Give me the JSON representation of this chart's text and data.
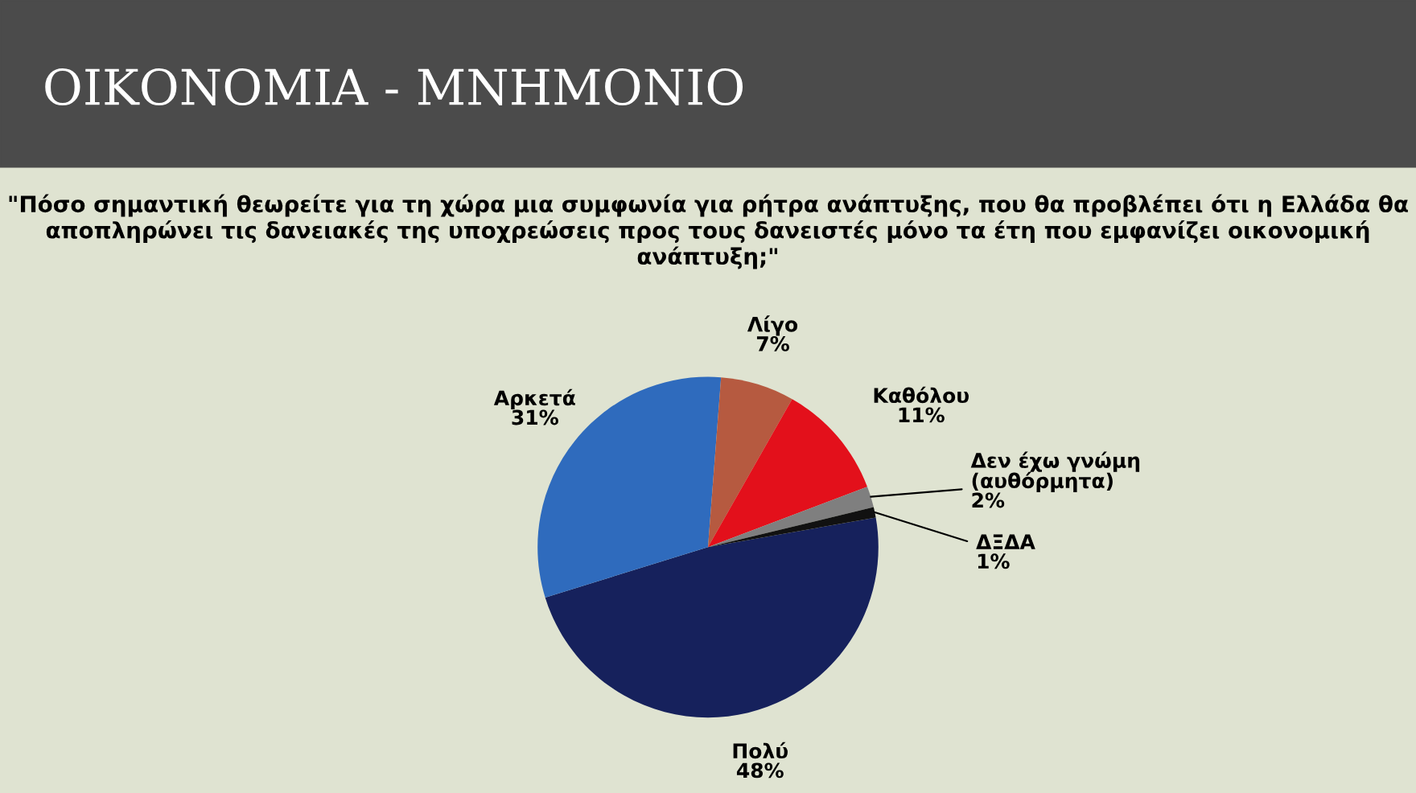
{
  "chart_data": {
    "type": "pie",
    "title": "ΟΙΚΟΝΟΜΙΑ - ΜΝΗΜΟΝΙΟ",
    "subtitle": "\"Πόσο σημαντική θεωρείτε για τη χώρα μια συμφωνία για ρήτρα ανάπτυξης, που θα προβλέπει ότι η Ελλάδα θα αποπληρώνει τις δανειακές της υποχρεώσεις προς τους δανειστές μόνο τα έτη που εμφανίζει οικονομική ανάπτυξη;\"",
    "categories": [
      "Πολύ",
      "Αρκετά",
      "Λίγο",
      "Καθόλου",
      "Δεν έχω γνώμη\n(αυθόρμητα)",
      "ΔΞΔΑ"
    ],
    "values": [
      48,
      31,
      7,
      11,
      2,
      1
    ],
    "value_labels": [
      "48%",
      "31%",
      "7%",
      "11%",
      "2%",
      "1%"
    ],
    "colors": [
      "#16215c",
      "#2f6bbd",
      "#b65a40",
      "#e3101b",
      "#7f7f7f",
      "#111111"
    ],
    "legend": false
  }
}
